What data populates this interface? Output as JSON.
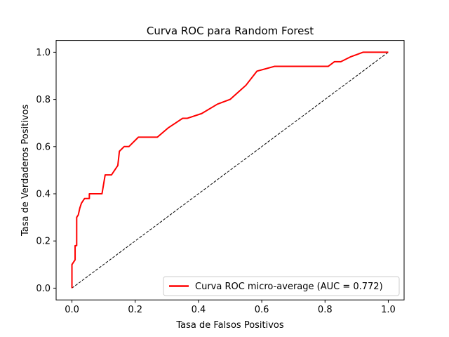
{
  "chart_data": {
    "type": "line",
    "title": "Curva ROC para Random Forest",
    "xlabel": "Tasa de Falsos Positivos",
    "ylabel": "Tasa de Verdaderos Positivos",
    "xlim": [
      -0.05,
      1.05
    ],
    "ylim": [
      -0.05,
      1.05
    ],
    "xticks": [
      0.0,
      0.2,
      0.4,
      0.6,
      0.8,
      1.0
    ],
    "yticks": [
      0.0,
      0.2,
      0.4,
      0.6,
      0.8,
      1.0
    ],
    "xtick_labels": [
      "0.0",
      "0.2",
      "0.4",
      "0.6",
      "0.8",
      "1.0"
    ],
    "ytick_labels": [
      "0.0",
      "0.2",
      "0.4",
      "0.6",
      "0.8",
      "1.0"
    ],
    "grid": false,
    "legend_position": "lower-right",
    "series": [
      {
        "name": "Curva ROC micro-average (AUC = 0.772)",
        "color": "#ff0000",
        "style": "solid",
        "x": [
          0.0,
          0.0,
          0.005,
          0.01,
          0.01,
          0.015,
          0.015,
          0.02,
          0.025,
          0.03,
          0.04,
          0.055,
          0.055,
          0.07,
          0.095,
          0.1,
          0.105,
          0.125,
          0.145,
          0.15,
          0.165,
          0.18,
          0.21,
          0.27,
          0.305,
          0.35,
          0.365,
          0.41,
          0.46,
          0.5,
          0.55,
          0.585,
          0.64,
          0.81,
          0.83,
          0.85,
          0.88,
          0.92,
          1.0
        ],
        "y": [
          0.0,
          0.1,
          0.11,
          0.12,
          0.18,
          0.18,
          0.3,
          0.31,
          0.34,
          0.36,
          0.38,
          0.38,
          0.4,
          0.4,
          0.4,
          0.44,
          0.48,
          0.48,
          0.52,
          0.58,
          0.6,
          0.6,
          0.64,
          0.64,
          0.68,
          0.72,
          0.72,
          0.74,
          0.78,
          0.8,
          0.86,
          0.92,
          0.94,
          0.94,
          0.96,
          0.96,
          0.98,
          1.0,
          1.0
        ]
      },
      {
        "name": "",
        "color": "#000000",
        "style": "dashed",
        "x": [
          0.0,
          1.0
        ],
        "y": [
          0.0,
          1.0
        ]
      }
    ]
  }
}
